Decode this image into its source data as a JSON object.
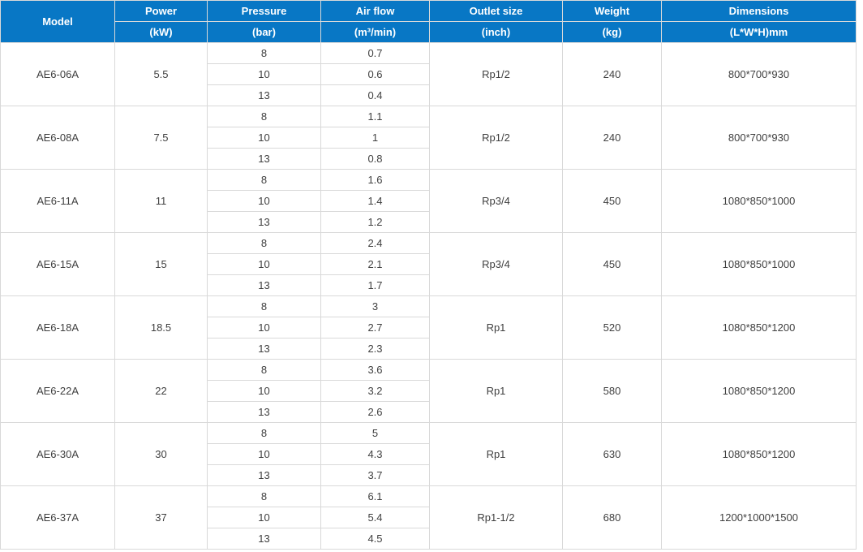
{
  "chart_data": {
    "type": "table",
    "columns": [
      {
        "label": "Model",
        "unit": ""
      },
      {
        "label": "Power",
        "unit": "(kW)"
      },
      {
        "label": "Pressure",
        "unit": "(bar)"
      },
      {
        "label": "Air flow",
        "unit": "(m³/min)"
      },
      {
        "label": "Outlet size",
        "unit": "(inch)"
      },
      {
        "label": "Weight",
        "unit": "(kg)"
      },
      {
        "label": "Dimensions",
        "unit": "(L*W*H)mm"
      }
    ],
    "groups": [
      {
        "model": "AE6-06A",
        "power": "5.5",
        "outlet_size": "Rp1/2",
        "weight": "240",
        "dimensions": "800*700*930",
        "sub_rows": [
          {
            "pressure": "8",
            "air_flow": "0.7"
          },
          {
            "pressure": "10",
            "air_flow": "0.6"
          },
          {
            "pressure": "13",
            "air_flow": "0.4"
          }
        ]
      },
      {
        "model": "AE6-08A",
        "power": "7.5",
        "outlet_size": "Rp1/2",
        "weight": "240",
        "dimensions": "800*700*930",
        "sub_rows": [
          {
            "pressure": "8",
            "air_flow": "1.1"
          },
          {
            "pressure": "10",
            "air_flow": "1"
          },
          {
            "pressure": "13",
            "air_flow": "0.8"
          }
        ]
      },
      {
        "model": "AE6-11A",
        "power": "11",
        "outlet_size": "Rp3/4",
        "weight": "450",
        "dimensions": "1080*850*1000",
        "sub_rows": [
          {
            "pressure": "8",
            "air_flow": "1.6"
          },
          {
            "pressure": "10",
            "air_flow": "1.4"
          },
          {
            "pressure": "13",
            "air_flow": "1.2"
          }
        ]
      },
      {
        "model": "AE6-15A",
        "power": "15",
        "outlet_size": "Rp3/4",
        "weight": "450",
        "dimensions": "1080*850*1000",
        "sub_rows": [
          {
            "pressure": "8",
            "air_flow": "2.4"
          },
          {
            "pressure": "10",
            "air_flow": "2.1"
          },
          {
            "pressure": "13",
            "air_flow": "1.7"
          }
        ]
      },
      {
        "model": "AE6-18A",
        "power": "18.5",
        "outlet_size": "Rp1",
        "weight": "520",
        "dimensions": "1080*850*1200",
        "sub_rows": [
          {
            "pressure": "8",
            "air_flow": "3"
          },
          {
            "pressure": "10",
            "air_flow": "2.7"
          },
          {
            "pressure": "13",
            "air_flow": "2.3"
          }
        ]
      },
      {
        "model": "AE6-22A",
        "power": "22",
        "outlet_size": "Rp1",
        "weight": "580",
        "dimensions": "1080*850*1200",
        "sub_rows": [
          {
            "pressure": "8",
            "air_flow": "3.6"
          },
          {
            "pressure": "10",
            "air_flow": "3.2"
          },
          {
            "pressure": "13",
            "air_flow": "2.6"
          }
        ]
      },
      {
        "model": "AE6-30A",
        "power": "30",
        "outlet_size": "Rp1",
        "weight": "630",
        "dimensions": "1080*850*1200",
        "sub_rows": [
          {
            "pressure": "8",
            "air_flow": "5"
          },
          {
            "pressure": "10",
            "air_flow": "4.3"
          },
          {
            "pressure": "13",
            "air_flow": "3.7"
          }
        ]
      },
      {
        "model": "AE6-37A",
        "power": "37",
        "outlet_size": "Rp1-1/2",
        "weight": "680",
        "dimensions": "1200*1000*1500",
        "sub_rows": [
          {
            "pressure": "8",
            "air_flow": "6.1"
          },
          {
            "pressure": "10",
            "air_flow": "5.4"
          },
          {
            "pressure": "13",
            "air_flow": "4.5"
          }
        ]
      }
    ]
  },
  "colors": {
    "header_bg": "#0877C5",
    "header_text": "#FFFFFF",
    "border": "#D9D9D9",
    "body_text": "#3F3F3F",
    "background": "#FFFFFF"
  }
}
